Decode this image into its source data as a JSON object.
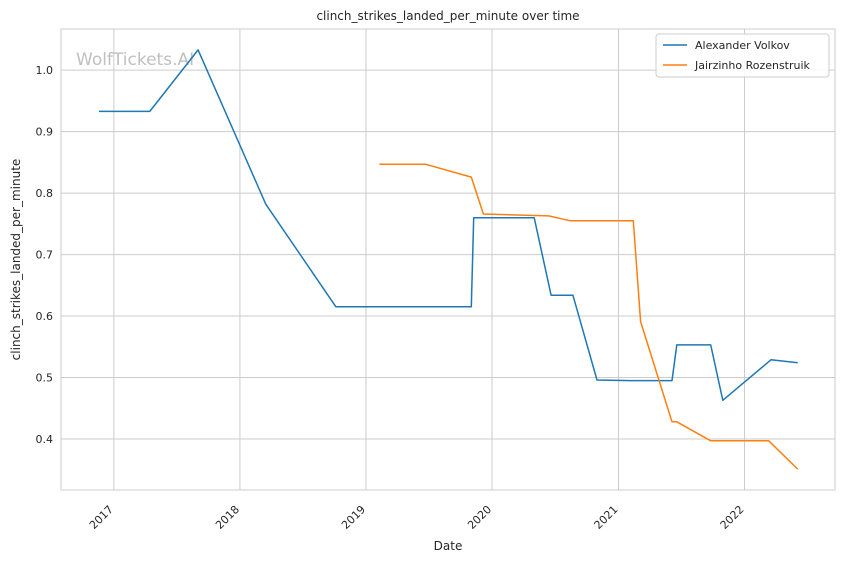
{
  "chart_data": {
    "type": "line",
    "title": "clinch_strikes_landed_per_minute over time",
    "xlabel": "Date",
    "ylabel": "clinch_strikes_landed_per_minute",
    "watermark": "WolfTickets.AI",
    "x_ticks": [
      "2017",
      "2018",
      "2019",
      "2020",
      "2021",
      "2022"
    ],
    "y_ticks": [
      "0.4",
      "0.5",
      "0.6",
      "0.7",
      "0.8",
      "0.9",
      "1.0"
    ],
    "xlim": [
      "2016-08-01",
      "2022-09-20"
    ],
    "ylim": [
      0.317,
      1.067
    ],
    "grid": true,
    "legend_position": "top-right",
    "series": [
      {
        "name": "Alexander Volkov",
        "color": "#1f77b4",
        "points": [
          [
            "2016-11-19",
            0.933
          ],
          [
            "2017-04-15",
            0.933
          ],
          [
            "2017-09-02",
            1.033
          ],
          [
            "2018-03-17",
            0.782
          ],
          [
            "2018-10-06",
            0.615
          ],
          [
            "2019-11-02",
            0.615
          ],
          [
            "2019-11-09",
            0.76
          ],
          [
            "2020-05-02",
            0.76
          ],
          [
            "2020-06-20",
            0.634
          ],
          [
            "2020-08-22",
            0.634
          ],
          [
            "2020-10-31",
            0.496
          ],
          [
            "2021-02-06",
            0.495
          ],
          [
            "2021-06-05",
            0.495
          ],
          [
            "2021-06-19",
            0.553
          ],
          [
            "2021-09-25",
            0.553
          ],
          [
            "2021-10-30",
            0.463
          ],
          [
            "2022-03-19",
            0.529
          ],
          [
            "2022-06-04",
            0.524
          ]
        ]
      },
      {
        "name": "Jairzinho Rozenstruik",
        "color": "#ff7f0e",
        "points": [
          [
            "2019-02-09",
            0.847
          ],
          [
            "2019-06-22",
            0.847
          ],
          [
            "2019-11-02",
            0.826
          ],
          [
            "2019-12-07",
            0.766
          ],
          [
            "2020-06-13",
            0.763
          ],
          [
            "2020-08-15",
            0.755
          ],
          [
            "2021-02-13",
            0.755
          ],
          [
            "2021-03-06",
            0.591
          ],
          [
            "2021-06-05",
            0.428
          ],
          [
            "2021-06-19",
            0.428
          ],
          [
            "2021-09-25",
            0.397
          ],
          [
            "2022-03-12",
            0.397
          ],
          [
            "2022-06-04",
            0.351
          ]
        ]
      }
    ]
  }
}
